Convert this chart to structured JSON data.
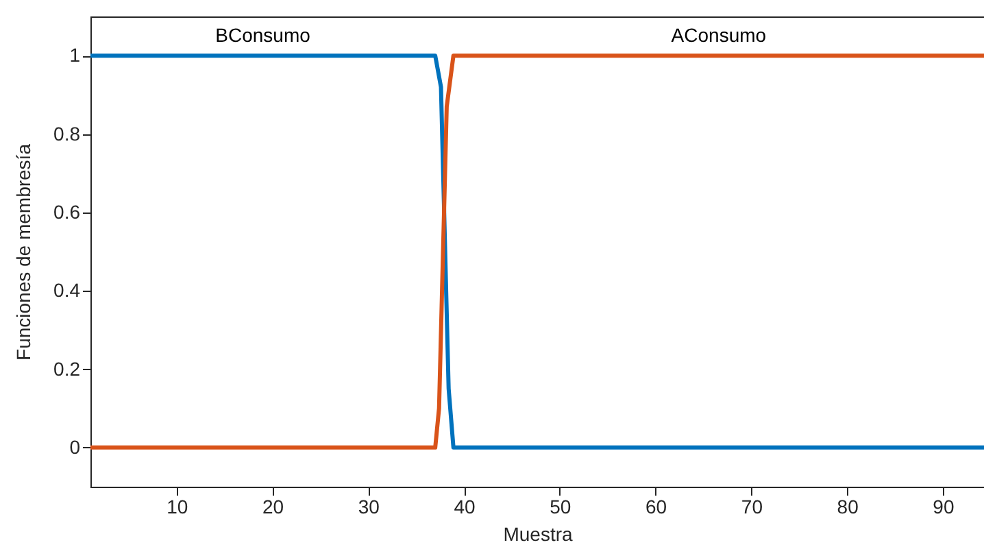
{
  "chart_data": {
    "type": "line",
    "xlabel": "Muestra",
    "ylabel": "Funciones de membresía",
    "xlim": [
      1,
      94.3
    ],
    "xticks": [
      10,
      20,
      30,
      40,
      50,
      60,
      70,
      80,
      90
    ],
    "ylim": [
      -0.1,
      1.1
    ],
    "yticks": [
      0,
      0.2,
      0.4,
      0.6,
      0.8,
      1
    ],
    "grid": false,
    "legend": false,
    "marker": "none",
    "line_style": "solid",
    "series": [
      {
        "name": "BConsumo",
        "color": "#0072bd",
        "x": [
          1,
          37,
          37.6,
          38.4,
          38.9,
          94.3
        ],
        "values": [
          1,
          1,
          0.92,
          0.15,
          0,
          0
        ]
      },
      {
        "name": "AConsumo",
        "color": "#d95319",
        "x": [
          1,
          37,
          37.4,
          38.2,
          38.9,
          94.3
        ],
        "values": [
          0,
          0,
          0.1,
          0.87,
          1,
          1
        ]
      }
    ]
  }
}
